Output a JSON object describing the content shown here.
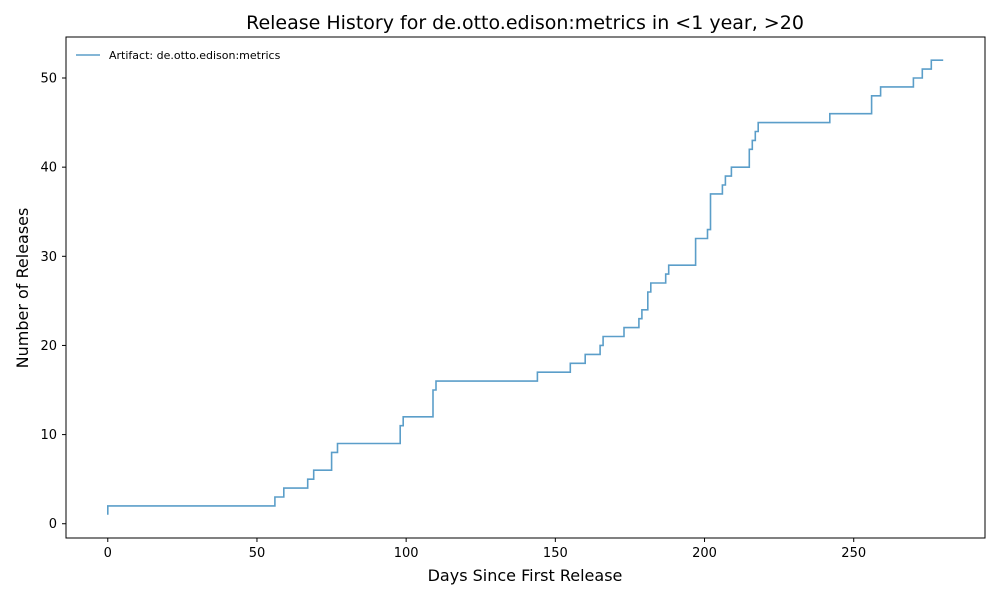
{
  "chart_data": {
    "type": "line",
    "title": "Release History for de.otto.edison:metrics in <1 year, >20",
    "xlabel": "Days Since First Release",
    "ylabel": "Number of Releases",
    "xlim": [
      -14,
      294
    ],
    "ylim": [
      -1.6,
      54.6
    ],
    "x_ticks": [
      0,
      50,
      100,
      150,
      200,
      250
    ],
    "y_ticks": [
      0,
      10,
      20,
      30,
      40,
      50
    ],
    "grid": false,
    "legend_position": "top-left",
    "line_style": "step-post",
    "series": [
      {
        "name": "Artifact: de.otto.edison:metrics",
        "color": "#5b9ec9",
        "x": [
          0,
          0,
          56,
          59,
          67,
          69,
          75,
          77,
          98,
          98.5,
          99,
          109,
          109.5,
          110,
          144,
          155,
          160,
          165,
          166,
          173,
          178,
          179,
          181,
          181.5,
          182,
          187,
          187.5,
          188,
          197,
          201,
          202,
          206,
          207,
          209,
          215,
          216,
          217,
          217.5,
          218,
          242,
          256,
          259,
          270,
          273,
          276,
          280
        ],
        "y": [
          1,
          2,
          3,
          4,
          5,
          6,
          8,
          9,
          11,
          11,
          12,
          15,
          15,
          16,
          17,
          18,
          19,
          20,
          21,
          22,
          23,
          24,
          26,
          26,
          27,
          28,
          28,
          29,
          32,
          33,
          37,
          38,
          39,
          40,
          42,
          43,
          44,
          44,
          45,
          46,
          48,
          49,
          50,
          51,
          52,
          52
        ]
      }
    ]
  }
}
